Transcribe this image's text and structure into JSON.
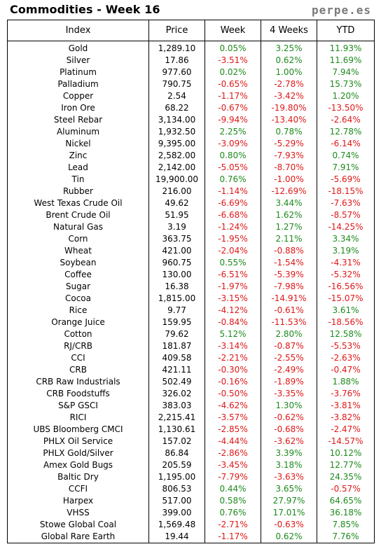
{
  "header": {
    "title": "Commodities - Week 16",
    "brand": "perpe.es"
  },
  "columns": [
    "Index",
    "Price",
    "Week",
    "4 Weeks",
    "YTD"
  ],
  "rows": [
    [
      "Gold",
      "1,289.10",
      "0.05%",
      "3.25%",
      "11.93%"
    ],
    [
      "Silver",
      "17.86",
      "-3.51%",
      "0.62%",
      "11.69%"
    ],
    [
      "Platinum",
      "977.60",
      "0.02%",
      "1.00%",
      "7.94%"
    ],
    [
      "Palladium",
      "790.75",
      "-0.65%",
      "-2.78%",
      "15.73%"
    ],
    [
      "Copper",
      "2.54",
      "-1.17%",
      "-3.42%",
      "1.20%"
    ],
    [
      "Iron Ore",
      "68.22",
      "-0.67%",
      "-19.80%",
      "-13.50%"
    ],
    [
      "Steel Rebar",
      "3,134.00",
      "-9.94%",
      "-13.40%",
      "-2.64%"
    ],
    [
      "Aluminum",
      "1,932.50",
      "2.25%",
      "0.78%",
      "12.78%"
    ],
    [
      "Nickel",
      "9,395.00",
      "-3.09%",
      "-5.29%",
      "-6.14%"
    ],
    [
      "Zinc",
      "2,582.00",
      "0.80%",
      "-7.93%",
      "0.74%"
    ],
    [
      "Lead",
      "2,142.00",
      "-5.05%",
      "-8.70%",
      "7.91%"
    ],
    [
      "Tin",
      "19,900.00",
      "0.76%",
      "-1.00%",
      "-5.69%"
    ],
    [
      "Rubber",
      "216.00",
      "-1.14%",
      "-12.69%",
      "-18.15%"
    ],
    [
      "West Texas Crude Oil",
      "49.62",
      "-6.69%",
      "3.44%",
      "-7.63%"
    ],
    [
      "Brent Crude Oil",
      "51.95",
      "-6.68%",
      "1.62%",
      "-8.57%"
    ],
    [
      "Natural Gas",
      "3.19",
      "-1.24%",
      "1.27%",
      "-14.25%"
    ],
    [
      "Corn",
      "363.75",
      "-1.95%",
      "2.11%",
      "3.34%"
    ],
    [
      "Wheat",
      "421.00",
      "-2.04%",
      "-0.88%",
      "3.19%"
    ],
    [
      "Soybean",
      "960.75",
      "0.55%",
      "-1.54%",
      "-4.31%"
    ],
    [
      "Coffee",
      "130.00",
      "-6.51%",
      "-5.39%",
      "-5.32%"
    ],
    [
      "Sugar",
      "16.38",
      "-1.97%",
      "-7.98%",
      "-16.56%"
    ],
    [
      "Cocoa",
      "1,815.00",
      "-3.15%",
      "-14.91%",
      "-15.07%"
    ],
    [
      "Rice",
      "9.77",
      "-4.12%",
      "-0.61%",
      "3.61%"
    ],
    [
      "Orange Juice",
      "159.95",
      "-0.84%",
      "-11.53%",
      "-18.56%"
    ],
    [
      "Cotton",
      "79.62",
      "5.12%",
      "2.80%",
      "12.58%"
    ],
    [
      "RJ/CRB",
      "181.87",
      "-3.14%",
      "-0.87%",
      "-5.53%"
    ],
    [
      "CCI",
      "409.58",
      "-2.21%",
      "-2.55%",
      "-2.63%"
    ],
    [
      "CRB",
      "421.11",
      "-0.30%",
      "-2.49%",
      "-0.47%"
    ],
    [
      "CRB Raw Industrials",
      "502.49",
      "-0.16%",
      "-1.89%",
      "1.88%"
    ],
    [
      "CRB Foodstuffs",
      "326.02",
      "-0.50%",
      "-3.35%",
      "-3.76%"
    ],
    [
      "S&P GSCI",
      "383.03",
      "-4.62%",
      "1.30%",
      "-3.81%"
    ],
    [
      "RICI",
      "2,215.41",
      "-3.57%",
      "-0.62%",
      "-3.82%"
    ],
    [
      "UBS Bloomberg CMCI",
      "1,130.61",
      "-2.85%",
      "-0.68%",
      "-2.47%"
    ],
    [
      "PHLX Oil Service",
      "157.02",
      "-4.44%",
      "-3.62%",
      "-14.57%"
    ],
    [
      "PHLX Gold/Silver",
      "86.84",
      "-2.86%",
      "3.39%",
      "10.12%"
    ],
    [
      "Amex Gold Bugs",
      "205.59",
      "-3.45%",
      "3.18%",
      "12.77%"
    ],
    [
      "Baltic Dry",
      "1,195.00",
      "-7.79%",
      "-3.63%",
      "24.35%"
    ],
    [
      "CCFI",
      "806.53",
      "0.44%",
      "3.65%",
      "-0.57%"
    ],
    [
      "Harpex",
      "517.00",
      "0.58%",
      "27.97%",
      "64.65%"
    ],
    [
      "VHSS",
      "399.00",
      "0.76%",
      "17.01%",
      "36.18%"
    ],
    [
      "Stowe Global Coal",
      "1,569.48",
      "-2.71%",
      "-0.63%",
      "7.85%"
    ],
    [
      "Global Rare Earth",
      "19.44",
      "-1.17%",
      "0.62%",
      "7.76%"
    ]
  ],
  "colors": {
    "positive": "#1e8a1e",
    "negative": "#e01818",
    "brand": "#7a7a7a"
  }
}
